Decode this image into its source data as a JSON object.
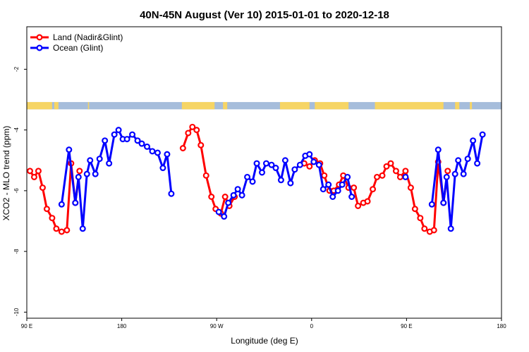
{
  "chart_data": {
    "type": "line",
    "title": "40N-45N August (Ver 10)   2015-01-01 to 2020-12-18",
    "xlabel": "Longitude (deg E)",
    "ylabel": "XCO2 - MLO trend (ppm)",
    "x_ticks": [
      {
        "value": 90,
        "label": "90 E"
      },
      {
        "value": 180,
        "label": "180"
      },
      {
        "value": 270,
        "label": "90 W"
      },
      {
        "value": 360,
        "label": "0"
      },
      {
        "value": 450,
        "label": "90 E"
      },
      {
        "value": 540,
        "label": "180"
      }
    ],
    "y_ticks": [
      {
        "value": -2,
        "label": "-2"
      },
      {
        "value": -4,
        "label": "-4"
      },
      {
        "value": -6,
        "label": "-6"
      },
      {
        "value": -8,
        "label": "-8"
      },
      {
        "value": -10,
        "label": "-10"
      }
    ],
    "xlim": [
      90,
      540
    ],
    "ylim": [
      -10.2,
      -0.6
    ],
    "legend": {
      "position": "top-left"
    },
    "land_ocean_band": {
      "y_from": -3.08,
      "y_to": -3.32,
      "ocean_color": "#a6bddb",
      "land_color": "#f6d565",
      "land_segments": [
        [
          90,
          114
        ],
        [
          116,
          120
        ],
        [
          148,
          149
        ],
        [
          237,
          268
        ],
        [
          276,
          280
        ],
        [
          330,
          358
        ],
        [
          363,
          395
        ],
        [
          420,
          485
        ],
        [
          496,
          500
        ],
        [
          510,
          512
        ]
      ]
    },
    "series": [
      {
        "name": "Land (Nadir&Glint)",
        "color": "#ff0000",
        "segments": [
          [
            [
              93,
              -5.35
            ],
            [
              97,
              -5.55
            ],
            [
              101,
              -5.35
            ],
            [
              105,
              -5.9
            ],
            [
              109,
              -6.6
            ],
            [
              114,
              -6.9
            ],
            [
              118,
              -7.25
            ],
            [
              123,
              -7.35
            ],
            [
              128,
              -7.3
            ],
            [
              132,
              -5.1
            ],
            [
              136,
              -6.4
            ],
            [
              140,
              -5.35
            ]
          ],
          [
            [
              238,
              -4.6
            ],
            [
              243,
              -4.1
            ],
            [
              247,
              -3.9
            ],
            [
              251,
              -4.0
            ],
            [
              255,
              -4.5
            ],
            [
              260,
              -5.5
            ],
            [
              265,
              -6.2
            ],
            [
              269,
              -6.6
            ],
            [
              274,
              -6.75
            ],
            [
              278,
              -6.2
            ],
            [
              282,
              -6.5
            ],
            [
              287,
              -6.2
            ]
          ],
          [
            [
              353,
              -5.1
            ],
            [
              358,
              -5.2
            ],
            [
              363,
              -5.0
            ],
            [
              368,
              -5.1
            ],
            [
              372,
              -5.5
            ],
            [
              377,
              -6.0
            ],
            [
              381,
              -6.0
            ],
            [
              386,
              -5.8
            ],
            [
              390,
              -5.5
            ],
            [
              395,
              -5.9
            ],
            [
              400,
              -5.9
            ],
            [
              404,
              -6.5
            ],
            [
              409,
              -6.4
            ],
            [
              413,
              -6.35
            ],
            [
              418,
              -5.95
            ],
            [
              422,
              -5.55
            ],
            [
              427,
              -5.5
            ],
            [
              431,
              -5.2
            ],
            [
              435,
              -5.1
            ],
            [
              440,
              -5.35
            ],
            [
              444,
              -5.55
            ],
            [
              449,
              -5.35
            ],
            [
              454,
              -5.9
            ],
            [
              458,
              -6.6
            ],
            [
              463,
              -6.9
            ],
            [
              467,
              -7.25
            ],
            [
              472,
              -7.35
            ],
            [
              476,
              -7.3
            ],
            [
              480,
              -5.05
            ],
            [
              485,
              -6.4
            ],
            [
              489,
              -5.35
            ]
          ]
        ]
      },
      {
        "name": "Ocean (Glint)",
        "color": "#0000ff",
        "segments": [
          [
            [
              123,
              -6.45
            ],
            [
              130,
              -4.65
            ],
            [
              136,
              -6.4
            ],
            [
              139,
              -5.55
            ],
            [
              143,
              -7.25
            ],
            [
              147,
              -5.45
            ],
            [
              150,
              -5.0
            ],
            [
              155,
              -5.45
            ],
            [
              159,
              -4.95
            ],
            [
              164,
              -4.35
            ],
            [
              168,
              -5.1
            ],
            [
              173,
              -4.15
            ],
            [
              177,
              -4.0
            ],
            [
              181,
              -4.3
            ],
            [
              185,
              -4.3
            ],
            [
              190,
              -4.15
            ],
            [
              195,
              -4.35
            ],
            [
              199,
              -4.45
            ],
            [
              204,
              -4.55
            ],
            [
              209,
              -4.7
            ],
            [
              214,
              -4.75
            ],
            [
              219,
              -5.25
            ],
            [
              223,
              -4.8
            ],
            [
              227,
              -6.1
            ]
          ],
          [
            [
              272,
              -6.7
            ],
            [
              277,
              -6.85
            ],
            [
              281,
              -6.4
            ],
            [
              286,
              -6.15
            ],
            [
              290,
              -5.95
            ],
            [
              294,
              -6.15
            ],
            [
              299,
              -5.55
            ],
            [
              304,
              -5.7
            ],
            [
              308,
              -5.1
            ],
            [
              313,
              -5.4
            ],
            [
              317,
              -5.1
            ],
            [
              322,
              -5.15
            ],
            [
              326,
              -5.25
            ],
            [
              331,
              -5.65
            ],
            [
              335,
              -5.0
            ],
            [
              340,
              -5.75
            ],
            [
              344,
              -5.3
            ],
            [
              349,
              -5.15
            ],
            [
              354,
              -4.85
            ],
            [
              358,
              -4.8
            ],
            [
              362,
              -5.05
            ],
            [
              367,
              -5.15
            ],
            [
              371,
              -5.95
            ],
            [
              376,
              -5.8
            ],
            [
              380,
              -6.2
            ],
            [
              385,
              -6.0
            ],
            [
              389,
              -5.8
            ],
            [
              394,
              -5.55
            ],
            [
              398,
              -6.2
            ]
          ],
          [
            [
              449,
              -5.55
            ]
          ],
          [
            [
              474,
              -6.45
            ],
            [
              480,
              -4.65
            ],
            [
              485,
              -6.4
            ],
            [
              488,
              -5.55
            ],
            [
              492,
              -7.25
            ],
            [
              496,
              -5.45
            ],
            [
              499,
              -5.0
            ],
            [
              504,
              -5.45
            ],
            [
              508,
              -4.95
            ],
            [
              513,
              -4.35
            ],
            [
              517,
              -5.1
            ],
            [
              522,
              -4.15
            ]
          ]
        ]
      }
    ]
  }
}
